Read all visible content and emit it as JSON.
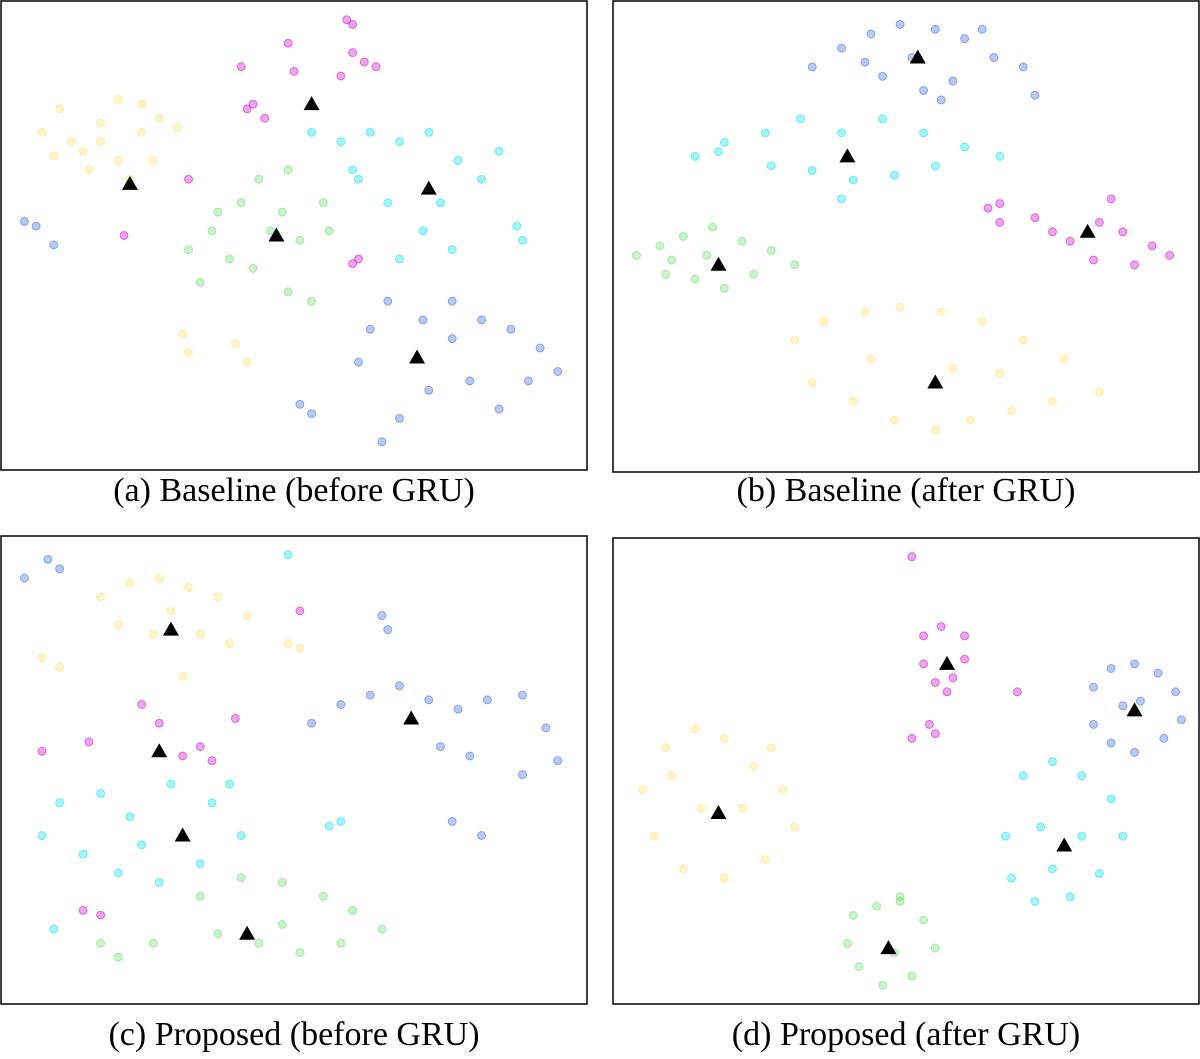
{
  "chart_data": [
    {
      "type": "scatter",
      "title": "(a) Baseline (before GRU)",
      "xlim": [
        0,
        100
      ],
      "ylim": [
        100,
        0
      ],
      "series": [
        {
          "color": "#ffe066",
          "x": [
            7,
            10,
            14,
            17,
            20,
            24,
            27,
            30,
            15,
            20,
            26,
            12,
            22,
            31,
            32,
            40,
            42,
            17,
            9,
            24
          ],
          "values": [
            28,
            23,
            32,
            26,
            21,
            28,
            25,
            27,
            36,
            34,
            34,
            30,
            38,
            71,
            75,
            73,
            77,
            30,
            33,
            22
          ]
        },
        {
          "color": "#cc00cc",
          "x": [
            59,
            60,
            62,
            64,
            58,
            60,
            50,
            49,
            42,
            43,
            45,
            41,
            60,
            61,
            21,
            32
          ],
          "values": [
            4,
            5,
            13,
            14,
            16,
            11,
            15,
            9,
            23,
            22,
            25,
            14,
            56,
            55,
            50,
            38
          ]
        },
        {
          "color": "#66dd66",
          "x": [
            32,
            36,
            41,
            44,
            48,
            51,
            55,
            43,
            39,
            49,
            53,
            34,
            46,
            56,
            49,
            37
          ],
          "values": [
            53,
            49,
            43,
            38,
            45,
            51,
            43,
            57,
            55,
            62,
            64,
            60,
            49,
            49,
            36,
            45
          ]
        },
        {
          "color": "#00e0ee",
          "x": [
            58,
            63,
            68,
            73,
            78,
            82,
            61,
            66,
            72,
            77,
            68,
            85,
            88,
            89,
            60,
            75,
            53
          ],
          "values": [
            30,
            28,
            30,
            28,
            34,
            38,
            38,
            43,
            49,
            53,
            55,
            32,
            48,
            51,
            36,
            43,
            28
          ]
        },
        {
          "color": "#3366dd",
          "x": [
            63,
            66,
            72,
            77,
            82,
            87,
            92,
            95,
            80,
            73,
            68,
            65,
            85,
            90,
            51,
            53,
            4,
            6,
            9,
            61,
            77
          ],
          "values": [
            70,
            64,
            68,
            72,
            68,
            70,
            74,
            79,
            81,
            83,
            89,
            94,
            87,
            81,
            86,
            88,
            47,
            48,
            52,
            77,
            64
          ]
        },
        {
          "color": "#000000",
          "marker": "triangle",
          "x": [
            22,
            53,
            47,
            73,
            71
          ],
          "values": [
            39,
            22,
            50,
            40,
            76
          ]
        }
      ]
    },
    {
      "type": "scatter",
      "title": "(b) Baseline (after GRU)",
      "xlim": [
        0,
        100
      ],
      "ylim": [
        100,
        0
      ],
      "series": [
        {
          "color": "#3366dd",
          "x": [
            34,
            39,
            44,
            49,
            55,
            60,
            65,
            70,
            46,
            53,
            58,
            43,
            56,
            51,
            63,
            72
          ],
          "values": [
            14,
            10,
            7,
            5,
            6,
            8,
            12,
            14,
            16,
            19,
            17,
            13,
            21,
            12,
            6,
            20
          ]
        },
        {
          "color": "#00e0ee",
          "x": [
            14,
            19,
            26,
            32,
            39,
            46,
            53,
            60,
            66,
            34,
            41,
            48,
            27,
            55,
            18,
            39
          ],
          "values": [
            33,
            30,
            28,
            25,
            28,
            25,
            28,
            31,
            33,
            36,
            38,
            37,
            35,
            35,
            32,
            42
          ]
        },
        {
          "color": "#cc00cc",
          "x": [
            64,
            66,
            72,
            75,
            78,
            83,
            87,
            92,
            95,
            82,
            85,
            89,
            66
          ],
          "values": [
            44,
            47,
            46,
            49,
            51,
            47,
            49,
            52,
            54,
            55,
            42,
            56,
            43
          ]
        },
        {
          "color": "#66dd66",
          "x": [
            4,
            8,
            12,
            17,
            22,
            27,
            31,
            9,
            14,
            19,
            24,
            16,
            10
          ],
          "values": [
            54,
            52,
            50,
            48,
            51,
            53,
            56,
            58,
            59,
            61,
            58,
            54,
            55
          ]
        },
        {
          "color": "#ffe066",
          "x": [
            31,
            36,
            43,
            49,
            56,
            63,
            70,
            77,
            83,
            34,
            41,
            48,
            55,
            61,
            68,
            75,
            44,
            58,
            66
          ],
          "values": [
            72,
            68,
            66,
            65,
            66,
            68,
            72,
            76,
            83,
            81,
            85,
            89,
            91,
            89,
            87,
            85,
            76,
            78,
            79
          ]
        },
        {
          "color": "#000000",
          "marker": "triangle",
          "x": [
            52,
            40,
            81,
            18,
            55
          ],
          "values": [
            12,
            33,
            49,
            56,
            81
          ]
        }
      ]
    },
    {
      "type": "scatter",
      "title": "(c) Proposed (before GRU)",
      "xlim": [
        0,
        100
      ],
      "ylim": [
        100,
        0
      ],
      "series": [
        {
          "color": "#ffe066",
          "x": [
            17,
            22,
            27,
            32,
            37,
            42,
            20,
            26,
            34,
            39,
            29,
            7,
            10,
            49,
            51,
            31
          ],
          "values": [
            13,
            10,
            9,
            11,
            13,
            17,
            19,
            21,
            21,
            23,
            16,
            26,
            28,
            23,
            24,
            30
          ]
        },
        {
          "color": "#3366dd",
          "x": [
            8,
            10,
            4,
            53,
            58,
            63,
            68,
            73,
            78,
            83,
            89,
            93,
            95,
            80,
            75,
            77,
            82,
            65,
            66,
            89
          ],
          "values": [
            5,
            7,
            9,
            40,
            36,
            34,
            32,
            35,
            37,
            35,
            34,
            41,
            48,
            47,
            45,
            61,
            64,
            17,
            20,
            51
          ]
        },
        {
          "color": "#cc00cc",
          "x": [
            15,
            27,
            31,
            36,
            40,
            51,
            7,
            17,
            14,
            24,
            34
          ],
          "values": [
            44,
            40,
            47,
            48,
            39,
            16,
            46,
            81,
            80,
            36,
            45
          ]
        },
        {
          "color": "#00e0ee",
          "x": [
            10,
            17,
            22,
            29,
            36,
            41,
            34,
            27,
            20,
            14,
            24,
            7,
            56,
            58,
            9,
            49,
            39
          ],
          "values": [
            57,
            55,
            60,
            53,
            57,
            64,
            70,
            74,
            72,
            68,
            66,
            64,
            62,
            61,
            84,
            4,
            53
          ]
        },
        {
          "color": "#66dd66",
          "x": [
            34,
            41,
            48,
            55,
            60,
            65,
            37,
            44,
            51,
            17,
            20,
            26,
            58,
            48
          ],
          "values": [
            77,
            73,
            74,
            77,
            80,
            84,
            85,
            87,
            89,
            87,
            90,
            87,
            87,
            83
          ]
        },
        {
          "color": "#000000",
          "marker": "triangle",
          "x": [
            29,
            27,
            31,
            42,
            70
          ],
          "values": [
            20,
            46,
            64,
            85,
            39
          ]
        }
      ]
    },
    {
      "type": "scatter",
      "title": "(d) Proposed (after GRU)",
      "xlim": [
        0,
        100
      ],
      "ylim": [
        100,
        0
      ],
      "series": [
        {
          "color": "#cc00cc",
          "x": [
            53,
            56,
            60,
            60,
            58,
            55,
            53,
            57,
            54,
            55,
            51,
            69,
            51
          ],
          "values": [
            21,
            19,
            21,
            26,
            30,
            31,
            27,
            33,
            40,
            42,
            4,
            33,
            43
          ]
        },
        {
          "color": "#3366dd",
          "x": [
            82,
            85,
            89,
            93,
            96,
            97,
            94,
            89,
            85,
            82,
            87,
            90
          ],
          "values": [
            32,
            28,
            27,
            29,
            33,
            39,
            43,
            46,
            44,
            40,
            36,
            35
          ]
        },
        {
          "color": "#ffe066",
          "x": [
            5,
            9,
            14,
            19,
            24,
            29,
            31,
            26,
            19,
            12,
            7,
            15,
            22,
            10,
            27
          ],
          "values": [
            54,
            45,
            41,
            43,
            49,
            54,
            62,
            69,
            73,
            71,
            64,
            58,
            58,
            51,
            45
          ]
        },
        {
          "color": "#00e0ee",
          "x": [
            70,
            75,
            80,
            85,
            87,
            83,
            78,
            72,
            68,
            67,
            73,
            80,
            75
          ],
          "values": [
            51,
            48,
            51,
            56,
            64,
            72,
            77,
            78,
            73,
            64,
            62,
            64,
            71
          ]
        },
        {
          "color": "#66dd66",
          "x": [
            41,
            45,
            49,
            53,
            55,
            51,
            46,
            42,
            40,
            49,
            48
          ],
          "values": [
            81,
            79,
            78,
            82,
            88,
            94,
            96,
            92,
            87,
            77,
            89
          ]
        },
        {
          "color": "#000000",
          "marker": "triangle",
          "x": [
            57,
            89,
            18,
            77,
            47
          ],
          "values": [
            27,
            37,
            59,
            66,
            88
          ]
        }
      ]
    }
  ]
}
